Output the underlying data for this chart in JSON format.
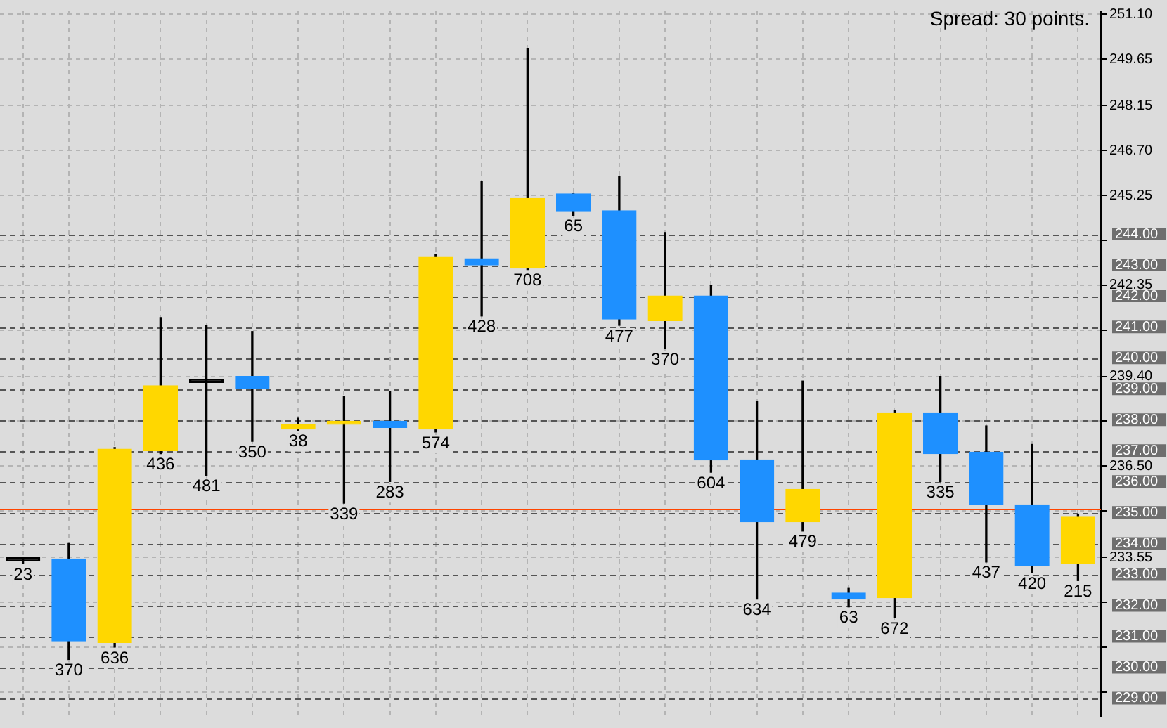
{
  "chart_data": {
    "type": "candlestick",
    "categories": [
      null,
      null,
      null,
      null,
      null,
      null,
      null,
      null,
      null,
      null,
      null,
      null,
      null,
      null,
      null,
      null,
      null,
      null,
      null,
      null,
      null,
      null,
      null,
      null
    ],
    "ohlc": [
      [
        233.45,
        233.55,
        233.35,
        233.5
      ],
      [
        233.5,
        234.0,
        230.25,
        230.85
      ],
      [
        230.8,
        237.1,
        230.65,
        237.05
      ],
      [
        237.0,
        241.3,
        236.9,
        239.1
      ],
      [
        239.2,
        241.05,
        236.2,
        239.25
      ],
      [
        239.4,
        240.85,
        237.3,
        239.0
      ],
      [
        237.7,
        238.05,
        237.65,
        237.85
      ],
      [
        237.85,
        238.75,
        235.3,
        237.95
      ],
      [
        237.95,
        238.9,
        236.0,
        237.75
      ],
      [
        237.7,
        243.35,
        237.6,
        243.25
      ],
      [
        243.2,
        245.7,
        241.35,
        243.0
      ],
      [
        242.9,
        250.0,
        242.85,
        245.15
      ],
      [
        245.3,
        245.3,
        244.6,
        244.75
      ],
      [
        244.75,
        245.85,
        241.05,
        241.25
      ],
      [
        241.2,
        244.05,
        240.3,
        242.0
      ],
      [
        242.0,
        242.35,
        236.3,
        236.7
      ],
      [
        236.7,
        238.6,
        232.2,
        234.7
      ],
      [
        234.7,
        239.25,
        234.4,
        235.75
      ],
      [
        232.4,
        232.55,
        231.95,
        232.2
      ],
      [
        232.25,
        238.3,
        231.6,
        238.2
      ],
      [
        238.2,
        239.4,
        236.0,
        236.9
      ],
      [
        236.95,
        237.8,
        233.4,
        235.25
      ],
      [
        235.25,
        237.2,
        233.05,
        233.3
      ],
      [
        233.35,
        234.95,
        232.8,
        234.85
      ]
    ],
    "colors": [
      "#000000",
      "#1e90ff",
      "#ffd700",
      "#ffd700",
      "#000000",
      "#1e90ff",
      "#ffd700",
      "#ffd700",
      "#1e90ff",
      "#ffd700",
      "#1e90ff",
      "#ffd700",
      "#1e90ff",
      "#1e90ff",
      "#ffd700",
      "#1e90ff",
      "#1e90ff",
      "#ffd700",
      "#1e90ff",
      "#ffd700",
      "#1e90ff",
      "#1e90ff",
      "#1e90ff",
      "#ffd700"
    ],
    "value_labels": [
      "23",
      "370",
      "636",
      "436",
      "481",
      "350",
      "38",
      "339",
      "283",
      "574",
      "428",
      "708",
      "65",
      "477",
      "370",
      "604",
      "634",
      "479",
      "63",
      "672",
      "335",
      "437",
      "420",
      "215"
    ],
    "ylim": [
      228.4,
      251.2
    ],
    "yticks": [
      "251.10",
      "249.65",
      "248.15",
      "246.70",
      "245.25",
      {
        "value": 243.8,
        "label": null
      },
      "242.35",
      {
        "value": 240.9,
        "label": null
      },
      "239.40",
      {
        "value": 237.95,
        "label": null
      },
      "236.50",
      {
        "value": 235.05,
        "label": null
      },
      "233.55",
      {
        "value": 232.1,
        "label": null
      },
      {
        "value": 230.65,
        "label": null
      },
      {
        "value": 229.2,
        "label": null
      }
    ],
    "ref_lines": [
      {
        "axis": "y",
        "value": 244,
        "label": "244.00",
        "color": "#555555",
        "line_style": "dashed"
      },
      {
        "axis": "y",
        "value": 243,
        "label": "243.00",
        "color": "#555555",
        "line_style": "dashed"
      },
      {
        "axis": "y",
        "value": 242,
        "label": "242.00",
        "color": "#555555",
        "line_style": "dashed"
      },
      {
        "axis": "y",
        "value": 241,
        "label": "241.00",
        "color": "#555555",
        "line_style": "dashed"
      },
      {
        "axis": "y",
        "value": 240,
        "label": "240.00",
        "color": "#555555",
        "line_style": "dashed"
      },
      {
        "axis": "y",
        "value": 239,
        "label": "239.00",
        "color": "#555555",
        "line_style": "dashed"
      },
      {
        "axis": "y",
        "value": 238,
        "label": "238.00",
        "color": "#555555",
        "line_style": "dashed"
      },
      {
        "axis": "y",
        "value": 237,
        "label": "237.00",
        "color": "#555555",
        "line_style": "dashed"
      },
      {
        "axis": "y",
        "value": 236,
        "label": "236.00",
        "color": "#555555",
        "line_style": "dashed"
      },
      {
        "axis": "y",
        "value": 235.14,
        "color": "#ff4500",
        "line_style": "solid"
      },
      {
        "axis": "y",
        "value": 235,
        "label": "235.00",
        "color": "#555555",
        "line_style": "dashed"
      },
      {
        "axis": "y",
        "value": 234,
        "label": "234.00",
        "color": "#555555",
        "line_style": "dashed"
      },
      {
        "axis": "y",
        "value": 233,
        "label": "233.00",
        "color": "#555555",
        "line_style": "dashed"
      },
      {
        "axis": "y",
        "value": 232,
        "label": "232.00",
        "color": "#555555",
        "line_style": "dashed"
      },
      {
        "axis": "y",
        "value": 231,
        "label": "231.00",
        "color": "#555555",
        "line_style": "dashed"
      },
      {
        "axis": "y",
        "value": 230,
        "label": "230.00",
        "color": "#555555",
        "line_style": "dashed"
      },
      {
        "axis": "y",
        "value": 229,
        "label": "229.00",
        "color": "#555555",
        "line_style": "dashed"
      }
    ],
    "annotations": [
      "Spread: 30 points."
    ],
    "grid": true,
    "legend": false,
    "tick_labels": "y"
  }
}
